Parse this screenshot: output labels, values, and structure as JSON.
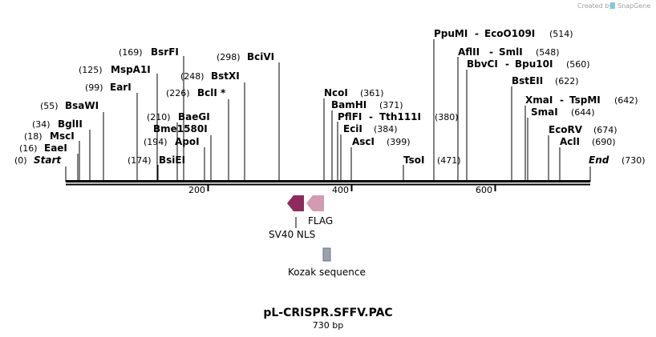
{
  "title": "pL-CRISPR.SFFV.PAC",
  "length_label": "730 bp",
  "credit": {
    "prefix": "Created by",
    "brand": "SnapGene"
  },
  "sequence_length": 730,
  "ticks": [
    {
      "value": 200,
      "label": "200"
    },
    {
      "value": 400,
      "label": "400"
    },
    {
      "value": 600,
      "label": "600"
    }
  ],
  "sites": [
    {
      "id": "start",
      "name": "Start",
      "pos": 0,
      "pos_label": "(0)",
      "italic": true
    },
    {
      "id": "eaei",
      "name": "EaeI",
      "pos": 16,
      "pos_label": "(16)"
    },
    {
      "id": "msci",
      "name": "MscI",
      "pos": 18,
      "pos_label": "(18)"
    },
    {
      "id": "bglii",
      "name": "BglII",
      "pos": 34,
      "pos_label": "(34)"
    },
    {
      "id": "bsawi",
      "name": "BsaWI",
      "pos": 55,
      "pos_label": "(55)"
    },
    {
      "id": "eari",
      "name": "EarI",
      "pos": 99,
      "pos_label": "(99)"
    },
    {
      "id": "mspa1i",
      "name": "MspA1I",
      "pos": 125,
      "pos_label": "(125)"
    },
    {
      "id": "bsrfi",
      "name": "BsrFI",
      "pos": 169,
      "pos_label": "(169)"
    },
    {
      "id": "bsiei",
      "name": "BsiEI",
      "pos": 174,
      "pos_label": "(174)"
    },
    {
      "id": "apoi",
      "name": "ApoI",
      "pos": 194,
      "pos_label": "(194)"
    },
    {
      "id": "bme1580i",
      "name": "Bme1580I",
      "pos": 202,
      "pos_label": ""
    },
    {
      "id": "baegi",
      "name": "BaeGI",
      "pos": 210,
      "pos_label": "(210)"
    },
    {
      "id": "bcli",
      "name": "BclI *",
      "pos": 226,
      "pos_label": "(226)"
    },
    {
      "id": "bstxi",
      "name": "BstXI",
      "pos": 248,
      "pos_label": "(248)"
    },
    {
      "id": "bcivi",
      "name": "BciVI",
      "pos": 298,
      "pos_label": "(298)"
    },
    {
      "id": "ncoi",
      "name": "NcoI",
      "pos": 361,
      "pos_label": "(361)"
    },
    {
      "id": "bamhi",
      "name": "BamHI",
      "pos": 371,
      "pos_label": "(371)"
    },
    {
      "id": "pflfi",
      "name": "PflFI",
      "pos": 380,
      "pos_label": "(380)",
      "alias": "Tth111I"
    },
    {
      "id": "ecii",
      "name": "EciI",
      "pos": 384,
      "pos_label": "(384)"
    },
    {
      "id": "asci",
      "name": "AscI",
      "pos": 399,
      "pos_label": "(399)"
    },
    {
      "id": "tsoi",
      "name": "TsoI",
      "pos": 471,
      "pos_label": "(471)"
    },
    {
      "id": "ppumi",
      "name": "PpuMI",
      "pos": 514,
      "pos_label": "(514)",
      "alias": "EcoO109I"
    },
    {
      "id": "aflii",
      "name": "AflII",
      "pos": 548,
      "pos_label": "(548)",
      "alias": "SmlI"
    },
    {
      "id": "bbvci",
      "name": "BbvCI",
      "pos": 560,
      "pos_label": "(560)",
      "alias": "Bpu10I"
    },
    {
      "id": "bsteii",
      "name": "BstEII",
      "pos": 622,
      "pos_label": "(622)"
    },
    {
      "id": "xmai",
      "name": "XmaI",
      "pos": 642,
      "pos_label": "(642)",
      "alias": "TspMI"
    },
    {
      "id": "smai",
      "name": "SmaI",
      "pos": 644,
      "pos_label": "(644)"
    },
    {
      "id": "ecorv",
      "name": "EcoRV",
      "pos": 674,
      "pos_label": "(674)"
    },
    {
      "id": "acli",
      "name": "AclI",
      "pos": 690,
      "pos_label": "(690)"
    },
    {
      "id": "end",
      "name": "End",
      "pos": 730,
      "pos_label": "(730)",
      "italic": true
    }
  ],
  "features": [
    {
      "id": "sv40-nls",
      "name": "SV40 NLS",
      "color": "#8e2a5c",
      "direction": "reverse"
    },
    {
      "id": "flag",
      "name": "FLAG",
      "color": "#d49ab2",
      "direction": "reverse"
    },
    {
      "id": "kozak",
      "name": "Kozak sequence",
      "color": "#9aa3ad",
      "direction": "none"
    }
  ],
  "colors": {
    "line": "#000000",
    "ticks": "#000000",
    "credit": "#a0a0a0",
    "brand_icon": "#7ec8e3"
  }
}
